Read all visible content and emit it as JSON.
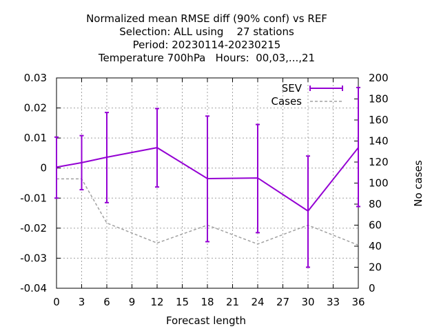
{
  "chart_data": {
    "type": "line",
    "title_lines": [
      "Normalized mean RMSE diff (90% conf) vs REF",
      "Selection: ALL using    27 stations",
      "Period: 20230114-20230215",
      "Temperature 700hPa   Hours:  00,03,...,21"
    ],
    "xlabel": "Forecast length",
    "ylabel": "",
    "y2label": "No cases",
    "xlim": [
      0,
      36
    ],
    "ylim": [
      -0.04,
      0.03
    ],
    "y2lim": [
      0,
      200
    ],
    "xticks": [
      "0",
      "3",
      "6",
      "9",
      "12",
      "15",
      "18",
      "21",
      "24",
      "27",
      "30",
      "33",
      "36"
    ],
    "yticks": [
      "0.03",
      "0.02",
      "0.01",
      "0",
      "-0.01",
      "-0.02",
      "-0.03",
      "-0.04"
    ],
    "y2ticks": [
      "200",
      "180",
      "160",
      "140",
      "120",
      "100",
      "80",
      "60",
      "40",
      "20",
      "0"
    ],
    "grid": true,
    "legend_position": "top-right",
    "series": [
      {
        "name": "SEV",
        "color": "#9400d3",
        "x": [
          0,
          3,
          6,
          12,
          18,
          24,
          30,
          36
        ],
        "values": [
          0.0003,
          0.0018,
          0.0036,
          0.0068,
          -0.0035,
          -0.0033,
          -0.0143,
          0.0068
        ],
        "err_low": [
          -0.01,
          -0.0072,
          -0.0115,
          -0.0063,
          -0.0245,
          -0.0215,
          -0.033,
          -0.0128
        ],
        "err_high": [
          0.0103,
          0.0108,
          0.0185,
          0.0198,
          0.0173,
          0.0145,
          0.004,
          0.0268
        ]
      },
      {
        "name": "Cases",
        "color": "#a0a0a0",
        "axis": "y2",
        "x": [
          0,
          3,
          6,
          12,
          18,
          24,
          30,
          36
        ],
        "values": [
          104,
          104,
          62,
          43,
          60,
          42,
          60,
          41
        ]
      }
    ]
  }
}
